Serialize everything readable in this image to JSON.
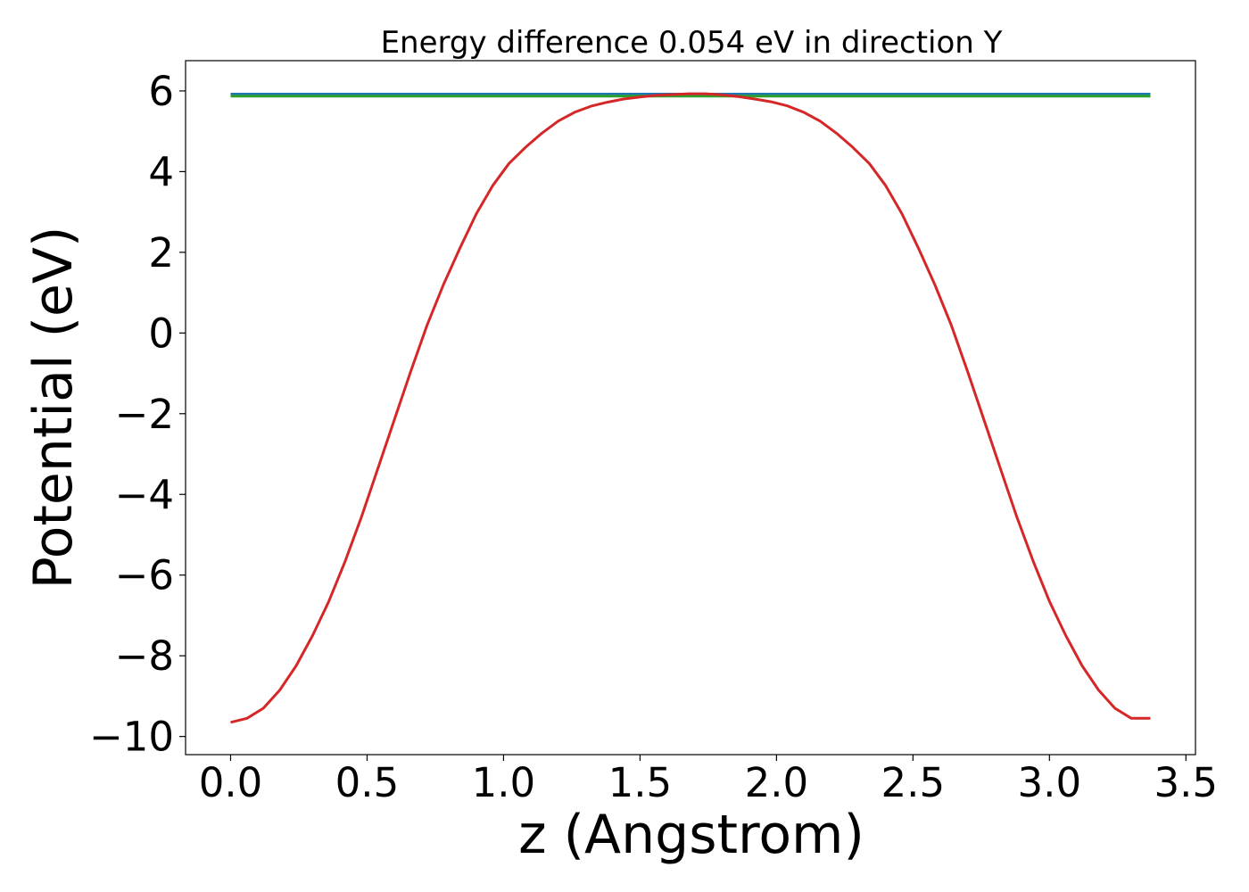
{
  "chart_data": {
    "type": "line",
    "title": "Energy difference 0.054 eV in direction Y",
    "xlabel": "z (Angstrom)",
    "ylabel": "Potential (eV)",
    "xlim": [
      -0.165,
      3.535
    ],
    "ylim": [
      -10.45,
      6.75
    ],
    "xticks": [
      0.0,
      0.5,
      1.0,
      1.5,
      2.0,
      2.5,
      3.0,
      3.5
    ],
    "xtick_labels": [
      "0.0",
      "0.5",
      "1.0",
      "1.5",
      "2.0",
      "2.5",
      "3.0",
      "3.5"
    ],
    "yticks": [
      -10,
      -8,
      -6,
      -4,
      -2,
      0,
      2,
      4,
      6
    ],
    "ytick_labels": [
      "−10",
      "−8",
      "−6",
      "−4",
      "−2",
      "0",
      "2",
      "4",
      "6"
    ],
    "grid": false,
    "series": [
      {
        "color": "#1f77b4",
        "x": [
          0.0,
          3.37
        ],
        "y": [
          5.92,
          5.92
        ]
      },
      {
        "color": "#2ca02c",
        "x": [
          0.0,
          3.37
        ],
        "y": [
          5.87,
          5.87
        ]
      },
      {
        "color": "#d62728",
        "x": [
          0.0,
          0.06,
          0.12,
          0.18,
          0.24,
          0.3,
          0.36,
          0.42,
          0.48,
          0.54,
          0.6,
          0.66,
          0.72,
          0.78,
          0.84,
          0.9,
          0.96,
          1.02,
          1.08,
          1.14,
          1.2,
          1.26,
          1.32,
          1.38,
          1.44,
          1.5,
          1.56,
          1.62,
          1.68,
          1.74,
          1.8,
          1.86,
          1.92,
          1.98,
          2.04,
          2.1,
          2.16,
          2.22,
          2.28,
          2.34,
          2.4,
          2.46,
          2.52,
          2.58,
          2.64,
          2.7,
          2.76,
          2.82,
          2.88,
          2.94,
          3.0,
          3.06,
          3.12,
          3.18,
          3.24,
          3.3,
          3.37
        ],
        "y": [
          -9.65,
          -9.55,
          -9.3,
          -8.85,
          -8.25,
          -7.5,
          -6.65,
          -5.65,
          -4.55,
          -3.35,
          -2.15,
          -0.95,
          0.2,
          1.2,
          2.1,
          2.95,
          3.65,
          4.2,
          4.6,
          4.95,
          5.25,
          5.47,
          5.62,
          5.72,
          5.8,
          5.85,
          5.89,
          5.91,
          5.93,
          5.93,
          5.9,
          5.86,
          5.8,
          5.73,
          5.63,
          5.47,
          5.25,
          4.95,
          4.6,
          4.2,
          3.65,
          2.95,
          2.1,
          1.2,
          0.2,
          -0.95,
          -2.15,
          -3.35,
          -4.55,
          -5.65,
          -6.65,
          -7.5,
          -8.25,
          -8.85,
          -9.3,
          -9.55,
          -9.55
        ]
      }
    ]
  }
}
